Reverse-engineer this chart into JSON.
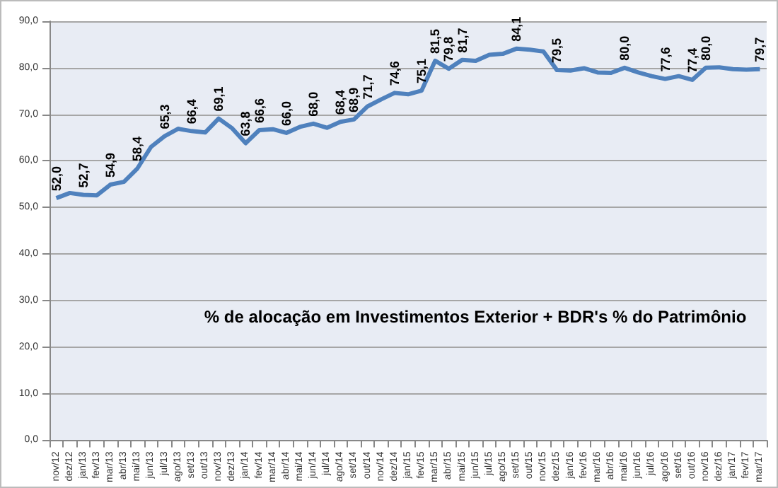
{
  "chart_data": {
    "type": "line",
    "title": "% de alocação em Investimentos Exterior + BDR's % do Patrimônio",
    "categories": [
      "nov/12",
      "dez/12",
      "jan/13",
      "fev/13",
      "mar/13",
      "abr/13",
      "mai/13",
      "jun/13",
      "jul/13",
      "ago/13",
      "set/13",
      "out/13",
      "nov/13",
      "dez/13",
      "jan/14",
      "fev/14",
      "mar/14",
      "abr/14",
      "mai/14",
      "jun/14",
      "jul/14",
      "ago/14",
      "set/14",
      "out/14",
      "nov/14",
      "dez/14",
      "jan/15",
      "fev/15",
      "mar/15",
      "abr/15",
      "mai/15",
      "jun/15",
      "jul/15",
      "ago/15",
      "set/15",
      "out/15",
      "nov/15",
      "dez/15",
      "jan/16",
      "fev/16",
      "mar/16",
      "abr/16",
      "mai/16",
      "jun/16",
      "jul/16",
      "ago/16",
      "set/16",
      "out/16",
      "nov/16",
      "dez/16",
      "jan/17",
      "fev/17",
      "mar/17"
    ],
    "series": [
      {
        "color": "#4f81bd",
        "values": [
          52.0,
          53.1,
          52.7,
          52.6,
          54.9,
          55.5,
          58.4,
          63.0,
          65.3,
          66.9,
          66.4,
          66.1,
          69.1,
          67.0,
          63.8,
          66.6,
          66.8,
          66.0,
          67.3,
          68.0,
          67.1,
          68.4,
          68.9,
          71.7,
          73.2,
          74.6,
          74.3,
          75.1,
          81.5,
          79.8,
          81.7,
          81.5,
          82.8,
          83.0,
          84.1,
          83.9,
          83.5,
          79.5,
          79.4,
          79.9,
          79.0,
          78.9,
          80.0,
          79.0,
          78.2,
          77.6,
          78.2,
          77.4,
          80.0,
          80.1,
          79.7,
          79.6,
          79.7
        ],
        "value_labels": [
          "52,0",
          null,
          "52,7",
          null,
          "54,9",
          null,
          "58,4",
          null,
          "65,3",
          null,
          "66,4",
          null,
          "69,1",
          null,
          "63,8",
          "66,6",
          null,
          "66,0",
          null,
          "68,0",
          null,
          "68,4",
          "68,9",
          "71,7",
          null,
          "74,6",
          null,
          "75,1",
          "81,5",
          "79,8",
          "81,7",
          null,
          null,
          null,
          "84,1",
          null,
          null,
          "79,5",
          null,
          null,
          null,
          null,
          "80,0",
          null,
          null,
          "77,6",
          null,
          "77,4",
          "80,0",
          null,
          null,
          null,
          "79,7"
        ]
      }
    ],
    "ylim": [
      0,
      90
    ],
    "yticks": [
      {
        "value": 0,
        "label": "0,0"
      },
      {
        "value": 10,
        "label": "10,0"
      },
      {
        "value": 20,
        "label": "20,0"
      },
      {
        "value": 30,
        "label": "30,0"
      },
      {
        "value": 40,
        "label": "40,0"
      },
      {
        "value": 50,
        "label": "50,0"
      },
      {
        "value": 60,
        "label": "60,0"
      },
      {
        "value": 70,
        "label": "70,0"
      },
      {
        "value": 80,
        "label": "80,0"
      },
      {
        "value": 90,
        "label": "90,0"
      }
    ],
    "grid": "y",
    "marker": "none",
    "line_style": "solid"
  }
}
